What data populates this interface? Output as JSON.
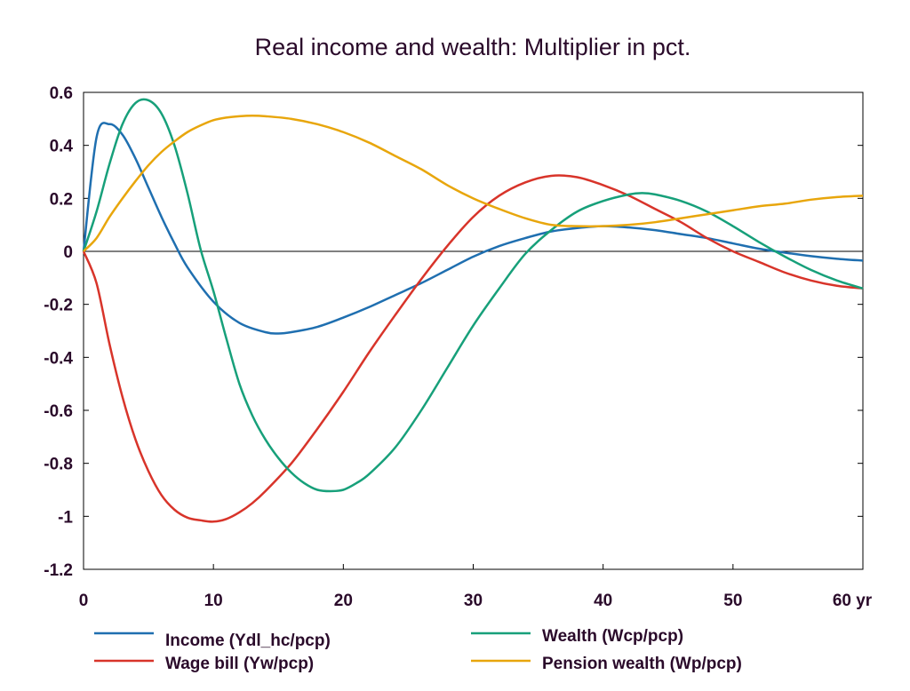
{
  "chart_data": {
    "type": "line",
    "title": "Real income and wealth: Multiplier in pct.",
    "xlabel": "",
    "ylabel": "",
    "x_unit_label": "yr",
    "xlim": [
      0,
      60
    ],
    "ylim": [
      -1.2,
      0.6
    ],
    "x_ticks": [
      0,
      10,
      20,
      30,
      40,
      50,
      60
    ],
    "x_tick_labels": [
      "0",
      "10",
      "20",
      "30",
      "40",
      "50",
      "60 yr"
    ],
    "y_ticks": [
      0.6,
      0.4,
      0.2,
      0,
      -0.2,
      -0.4,
      -0.6,
      -0.8,
      -1,
      -1.2
    ],
    "y_tick_labels": [
      "0.6",
      "0.4",
      "0.2",
      "0",
      "-0.2",
      "-0.4",
      "-0.6",
      "-0.8",
      "-1",
      "-1.2"
    ],
    "grid": false,
    "zero_line": true,
    "legend_position": "bottom",
    "series": [
      {
        "name": "Income (Ydl_hc/pcp)",
        "color": "#1f6fb0",
        "x": [
          0,
          1,
          2,
          3,
          4,
          5,
          6,
          7,
          8,
          10,
          12,
          14,
          15,
          16,
          18,
          20,
          22,
          24,
          26,
          28,
          30,
          32,
          34,
          36,
          38,
          40,
          42,
          44,
          46,
          48,
          50,
          52,
          54,
          56,
          58,
          60
        ],
        "y": [
          0,
          0.43,
          0.48,
          0.44,
          0.35,
          0.24,
          0.13,
          0.03,
          -0.06,
          -0.19,
          -0.27,
          -0.305,
          -0.31,
          -0.305,
          -0.285,
          -0.25,
          -0.21,
          -0.165,
          -0.12,
          -0.07,
          -0.02,
          0.02,
          0.05,
          0.075,
          0.088,
          0.095,
          0.09,
          0.08,
          0.065,
          0.05,
          0.03,
          0.01,
          -0.005,
          -0.018,
          -0.028,
          -0.035
        ]
      },
      {
        "name": "Wage bill (Yw/pcp)",
        "color": "#d8342a",
        "x": [
          0,
          1,
          2,
          3,
          4,
          5,
          6,
          7,
          8,
          9,
          10,
          11,
          12,
          13,
          14,
          16,
          18,
          20,
          22,
          24,
          26,
          28,
          30,
          32,
          34,
          36,
          38,
          40,
          42,
          44,
          46,
          48,
          50,
          52,
          54,
          56,
          58,
          60
        ],
        "y": [
          0,
          -0.12,
          -0.35,
          -0.55,
          -0.71,
          -0.83,
          -0.92,
          -0.975,
          -1.005,
          -1.015,
          -1.02,
          -1.01,
          -0.985,
          -0.95,
          -0.905,
          -0.8,
          -0.67,
          -0.53,
          -0.38,
          -0.24,
          -0.105,
          0.02,
          0.13,
          0.21,
          0.26,
          0.285,
          0.28,
          0.25,
          0.21,
          0.16,
          0.11,
          0.05,
          0.0,
          -0.04,
          -0.08,
          -0.11,
          -0.13,
          -0.14
        ]
      },
      {
        "name": "Wealth (Wcp/pcp)",
        "color": "#17a07a",
        "x": [
          0,
          1,
          2,
          3,
          4,
          5,
          6,
          7,
          8,
          9,
          10,
          11,
          12,
          13,
          14,
          15,
          16,
          17,
          18,
          19,
          20,
          21,
          22,
          24,
          26,
          28,
          30,
          32,
          34,
          36,
          38,
          40,
          42,
          43,
          44,
          46,
          48,
          50,
          52,
          54,
          56,
          58,
          60
        ],
        "y": [
          0,
          0.15,
          0.33,
          0.48,
          0.56,
          0.57,
          0.52,
          0.4,
          0.22,
          0.01,
          -0.15,
          -0.33,
          -0.5,
          -0.62,
          -0.71,
          -0.78,
          -0.835,
          -0.875,
          -0.9,
          -0.905,
          -0.9,
          -0.875,
          -0.84,
          -0.74,
          -0.6,
          -0.44,
          -0.28,
          -0.14,
          -0.01,
          0.08,
          0.15,
          0.19,
          0.215,
          0.22,
          0.215,
          0.19,
          0.15,
          0.095,
          0.035,
          -0.02,
          -0.07,
          -0.11,
          -0.14
        ]
      },
      {
        "name": "Pension wealth (Wp/pcp)",
        "color": "#e8a60c",
        "x": [
          0,
          1,
          2,
          3,
          4,
          5,
          6,
          7,
          8,
          9,
          10,
          11,
          12,
          13,
          14,
          16,
          18,
          20,
          22,
          24,
          26,
          28,
          30,
          32,
          34,
          36,
          38,
          40,
          42,
          44,
          46,
          48,
          50,
          52,
          54,
          56,
          58,
          60
        ],
        "y": [
          0,
          0.05,
          0.13,
          0.2,
          0.265,
          0.325,
          0.375,
          0.415,
          0.45,
          0.475,
          0.495,
          0.505,
          0.51,
          0.512,
          0.51,
          0.5,
          0.48,
          0.45,
          0.41,
          0.36,
          0.31,
          0.25,
          0.2,
          0.16,
          0.125,
          0.1,
          0.095,
          0.095,
          0.1,
          0.11,
          0.125,
          0.14,
          0.155,
          0.17,
          0.18,
          0.195,
          0.205,
          0.21
        ]
      }
    ]
  }
}
